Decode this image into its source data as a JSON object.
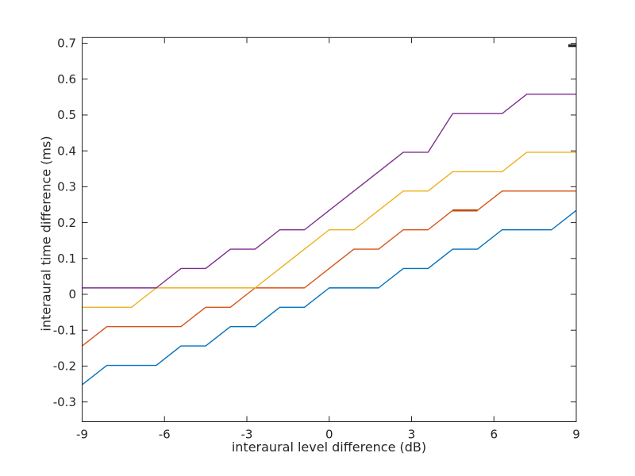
{
  "chart_data": {
    "type": "line",
    "xlabel": "interaural level difference (dB)",
    "ylabel": "interaural time difference (ms)",
    "xlim": [
      -9,
      9
    ],
    "ylim": [
      -0.355,
      0.716
    ],
    "xticks": [
      -9,
      -6,
      -3,
      0,
      3,
      6,
      9
    ],
    "xtick_labels": [
      "-9",
      "-6",
      "-3",
      "0",
      "3",
      "6",
      "9"
    ],
    "yticks": [
      -0.3,
      -0.2,
      -0.1,
      0,
      0.1,
      0.2,
      0.3,
      0.4,
      0.5,
      0.6,
      0.7
    ],
    "ytick_labels": [
      "-0.3",
      "-0.2",
      "-0.1",
      "0",
      "0.1",
      "0.2",
      "0.3",
      "0.4",
      "0.5",
      "0.6",
      "0.7"
    ],
    "grid": false,
    "legend": "none",
    "box": true,
    "axis_color": "#262626",
    "background": "#ffffff",
    "x": [
      -9,
      -8.1,
      -7.2,
      -6.3,
      -5.4,
      -4.5,
      -3.6,
      -2.7,
      -1.8,
      -0.9,
      0,
      0.9,
      1.8,
      2.7,
      3.6,
      4.5,
      5.4,
      6.3,
      7.2,
      8.1,
      9
    ],
    "series": [
      {
        "name": "series-blue",
        "color": "#0072BD",
        "values": [
          -0.252,
          -0.198,
          -0.198,
          -0.198,
          -0.144,
          -0.144,
          -0.09,
          -0.09,
          -0.036,
          -0.036,
          0.018,
          0.018,
          0.018,
          0.072,
          0.072,
          0.126,
          0.126,
          0.18,
          0.18,
          0.18,
          0.234
        ]
      },
      {
        "name": "series-orange",
        "color": "#D95319",
        "values": [
          -0.144,
          -0.09,
          -0.09,
          -0.09,
          -0.09,
          -0.036,
          -0.036,
          0.018,
          0.018,
          0.018,
          0.072,
          0.126,
          0.126,
          0.18,
          0.18,
          0.234,
          0.234,
          0.288,
          0.288,
          0.288,
          0.288
        ]
      },
      {
        "name": "series-yellow",
        "color": "#EDB120",
        "values": [
          -0.036,
          -0.036,
          -0.036,
          0.018,
          0.018,
          0.018,
          0.018,
          0.018,
          0.072,
          0.126,
          0.18,
          0.18,
          0.234,
          0.288,
          0.288,
          0.342,
          0.342,
          0.342,
          0.396,
          0.396,
          0.396
        ]
      },
      {
        "name": "series-purple",
        "color": "#7E2F8E",
        "values": [
          0.018,
          0.018,
          0.018,
          0.018,
          0.072,
          0.072,
          0.126,
          0.126,
          0.18,
          0.18,
          0.234,
          0.288,
          0.342,
          0.396,
          0.396,
          0.504,
          0.504,
          0.504,
          0.558,
          0.558,
          0.558
        ]
      }
    ],
    "emphasized_segment": {
      "series": "series-orange",
      "x_range": [
        4.5,
        5.4
      ],
      "y": 0.234,
      "color": "#C24A12",
      "width": 2.6
    },
    "bold_right_tick": {
      "value": 0.7
    }
  }
}
